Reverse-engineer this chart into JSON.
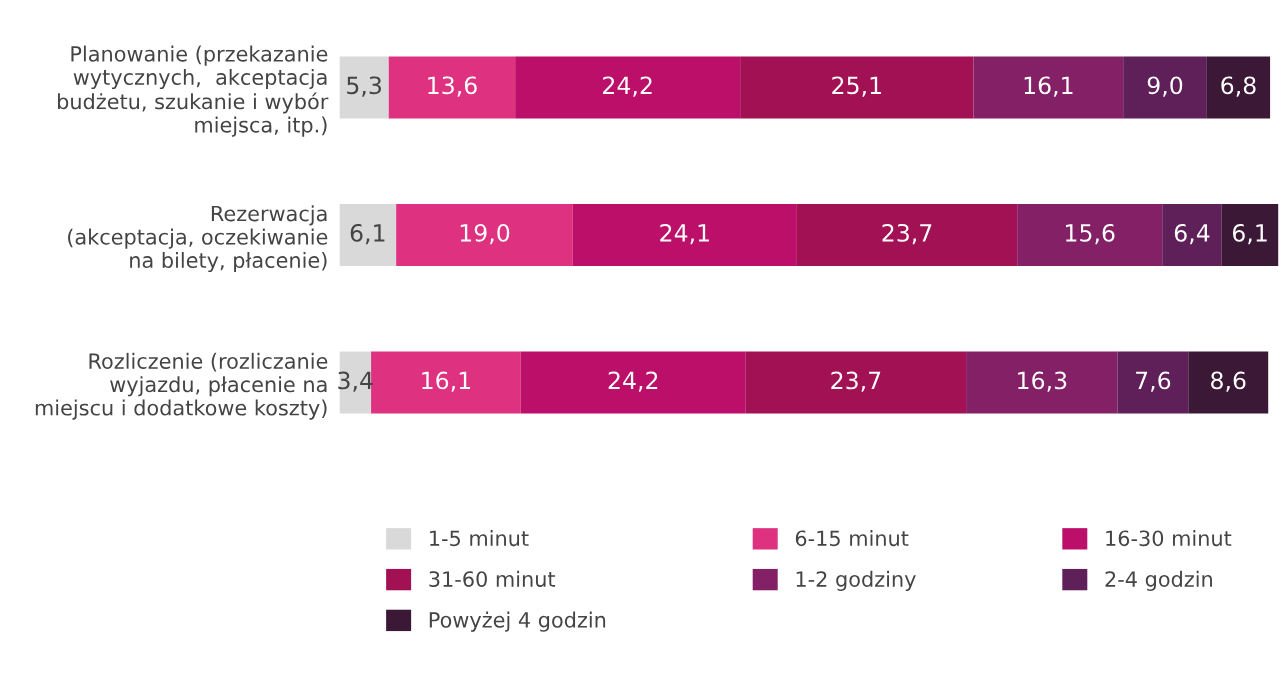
{
  "chart_data": {
    "type": "bar",
    "orientation": "horizontal",
    "stacked": true,
    "legend": "bottom",
    "categories": [
      "Planowanie (przekazanie\nwytycznych,  akceptacja\nbudżetu, szukanie i wybór\nmiejsca, itp.)",
      "Rezerwacja\n(akceptacja, oczekiwanie\nna bilety, płacenie)",
      "Rozliczenie (rozliczanie\nwyjazdu, płacenie na\nmiejscu i dodatkowe koszty)"
    ],
    "series": [
      {
        "name": "1-5 minut",
        "color": "#d9d9d9",
        "values": [
          5.3,
          6.1,
          3.4
        ],
        "value_labels": [
          "5,3",
          "6,1",
          "3,4"
        ]
      },
      {
        "name": "6-15 minut",
        "color": "#de3280",
        "values": [
          13.6,
          19.0,
          16.1
        ],
        "value_labels": [
          "13,6",
          "19,0",
          "16,1"
        ]
      },
      {
        "name": "16-30 minut",
        "color": "#bb0f6a",
        "values": [
          24.2,
          24.1,
          24.2
        ],
        "value_labels": [
          "24,2",
          "24,1",
          "24,2"
        ]
      },
      {
        "name": "31-60 minut",
        "color": "#a31155",
        "values": [
          25.1,
          23.7,
          23.7
        ],
        "value_labels": [
          "25,1",
          "23,7",
          "23,7"
        ]
      },
      {
        "name": "1-2 godziny",
        "color": "#832066",
        "values": [
          16.1,
          15.6,
          16.3
        ],
        "value_labels": [
          "16,1",
          "15,6",
          "16,3"
        ]
      },
      {
        "name": "2-4 godzin",
        "color": "#5f1f58",
        "values": [
          9.0,
          6.4,
          7.6
        ],
        "value_labels": [
          "9,0",
          "6,4",
          "7,6"
        ]
      },
      {
        "name": "Powyżej 4 godzin",
        "color": "#3b1836",
        "values": [
          6.8,
          6.1,
          8.6
        ],
        "value_labels": [
          "6,8",
          "6,1",
          "8,6"
        ]
      }
    ]
  }
}
